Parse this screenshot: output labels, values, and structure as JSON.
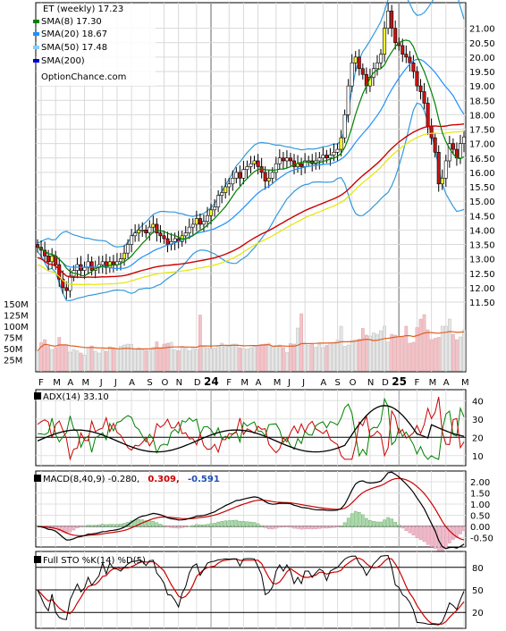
{
  "chart_data": [
    {
      "type": "candlestick",
      "title": "ET (weekly) 17.23",
      "legend": [
        {
          "label": "SMA(8) 17.30",
          "color": "#008000"
        },
        {
          "label": "SMA(20) 18.67",
          "color": "#1e90ff"
        },
        {
          "label": "SMA(50) 17.48",
          "color": "#e6e600"
        },
        {
          "label": "SMA(200)",
          "color": "#0000cc"
        }
      ],
      "watermark": "OptionChance.com",
      "legend_placement": "top-left",
      "ylim": [
        11.0,
        22.0
      ],
      "y_ticks": [
        "11.50",
        "12.00",
        "12.50",
        "13.00",
        "13.50",
        "14.00",
        "14.50",
        "15.00",
        "15.50",
        "16.00",
        "16.50",
        "17.00",
        "17.50",
        "18.00",
        "18.50",
        "19.00",
        "19.50",
        "20.00",
        "20.50",
        "21.00"
      ],
      "y_tick_values": [
        11.5,
        12.0,
        12.5,
        13.0,
        13.5,
        14.0,
        14.5,
        15.0,
        15.5,
        16.0,
        16.5,
        17.0,
        17.5,
        18.0,
        18.5,
        19.0,
        19.5,
        20.0,
        20.5,
        21.0
      ],
      "x_ticks": [
        {
          "label": "F",
          "w": 1
        },
        {
          "label": "M",
          "w": 5
        },
        {
          "label": "A",
          "w": 9
        },
        {
          "label": "M",
          "w": 13
        },
        {
          "label": "J",
          "w": 18
        },
        {
          "label": "J",
          "w": 22
        },
        {
          "label": "A",
          "w": 26
        },
        {
          "label": "S",
          "w": 31
        },
        {
          "label": "O",
          "w": 35
        },
        {
          "label": "N",
          "w": 39
        },
        {
          "label": "D",
          "w": 44
        },
        {
          "label": "24",
          "w": 48,
          "bold": true
        },
        {
          "label": "F",
          "w": 53
        },
        {
          "label": "M",
          "w": 57
        },
        {
          "label": "A",
          "w": 61
        },
        {
          "label": "M",
          "w": 66
        },
        {
          "label": "J",
          "w": 70
        },
        {
          "label": "J",
          "w": 74
        },
        {
          "label": "A",
          "w": 79
        },
        {
          "label": "S",
          "w": 83
        },
        {
          "label": "O",
          "w": 87
        },
        {
          "label": "N",
          "w": 92
        },
        {
          "label": "D",
          "w": 96
        },
        {
          "label": "25",
          "w": 100,
          "bold": true
        },
        {
          "label": "F",
          "w": 105
        },
        {
          "label": "M",
          "w": 109
        },
        {
          "label": "A",
          "w": 113
        },
        {
          "label": "M",
          "w": 118
        }
      ],
      "grid": true,
      "close": [
        13.4,
        13.3,
        13.1,
        12.9,
        13.1,
        12.8,
        12.3,
        12.0,
        11.9,
        12.4,
        12.6,
        12.8,
        12.6,
        12.7,
        12.9,
        12.6,
        12.7,
        12.8,
        12.9,
        12.7,
        12.9,
        12.8,
        12.9,
        13.0,
        13.2,
        13.5,
        13.8,
        13.9,
        14.0,
        14.0,
        13.9,
        14.1,
        14.2,
        13.9,
        13.8,
        13.7,
        13.5,
        13.6,
        13.7,
        13.6,
        13.8,
        13.9,
        14.1,
        14.2,
        14.4,
        14.2,
        14.3,
        14.5,
        14.7,
        14.8,
        15.2,
        15.3,
        15.5,
        15.6,
        15.8,
        16.0,
        15.8,
        16.1,
        16.2,
        16.3,
        16.4,
        16.2,
        16.0,
        15.7,
        15.8,
        16.0,
        16.3,
        16.5,
        16.4,
        16.5,
        16.4,
        16.2,
        16.3,
        16.2,
        16.4,
        16.4,
        16.3,
        16.4,
        16.5,
        16.6,
        16.5,
        16.6,
        16.7,
        16.8,
        17.2,
        18.0,
        19.0,
        19.8,
        20.0,
        19.6,
        19.4,
        19.0,
        19.3,
        19.6,
        19.8,
        20.1,
        21.0,
        21.6,
        21.0,
        20.5,
        20.4,
        20.1,
        20.0,
        19.8,
        19.5,
        19.0,
        18.8,
        18.4,
        17.6,
        17.2,
        16.7,
        15.6,
        15.8,
        16.4,
        17.0,
        16.8,
        16.5,
        17.0,
        17.23
      ],
      "volume_axis": {
        "ticks": [
          "25M",
          "50M",
          "75M",
          "100M",
          "125M",
          "150M"
        ],
        "values": [
          25,
          50,
          75,
          100,
          125,
          150
        ]
      },
      "volume": [
        45,
        63,
        70,
        55,
        48,
        52,
        75,
        57,
        58,
        42,
        48,
        45,
        40,
        35,
        52,
        56,
        44,
        40,
        47,
        44,
        54,
        52,
        49,
        55,
        58,
        60,
        59,
        49,
        52,
        48,
        46,
        45,
        53,
        65,
        50,
        60,
        62,
        64,
        47,
        45,
        55,
        51,
        45,
        50,
        48,
        125,
        55,
        52,
        50,
        51,
        57,
        62,
        56,
        55,
        60,
        60,
        52,
        50,
        49,
        52,
        55,
        56,
        59,
        60,
        62,
        54,
        57,
        58,
        52,
        41,
        61,
        60,
        96,
        128,
        62,
        57,
        60,
        53,
        60,
        52,
        57,
        62,
        64,
        69,
        100,
        55,
        58,
        68,
        70,
        71,
        95,
        80,
        78,
        85,
        82,
        90,
        100,
        65,
        82,
        80,
        78,
        75,
        100,
        62,
        64,
        97,
        116,
        126,
        92,
        70,
        73,
        75,
        100,
        100,
        116,
        82,
        70,
        76,
        92
      ]
    },
    {
      "type": "line",
      "title": "ADX(14) 33.10",
      "y_ticks": [
        "10",
        "20",
        "30",
        "40"
      ],
      "y_tick_values": [
        10,
        20,
        30,
        40
      ],
      "reference_lines": [
        20
      ]
    },
    {
      "type": "line+histogram",
      "title": "MACD(8,40,9) -0.280,",
      "values": [
        {
          "text": "0.309,",
          "color": "#cc0000"
        },
        {
          "text": "-0.591",
          "color": "#1f4fb8"
        }
      ],
      "y_ticks": [
        "-0.50",
        "0.00",
        "0.50",
        "1.00",
        "1.50",
        "2.00"
      ],
      "y_tick_values": [
        -0.5,
        0.0,
        0.5,
        1.0,
        1.5,
        2.0
      ],
      "reference_lines": [
        0
      ]
    },
    {
      "type": "line",
      "title": "Full STO %K(14) %D(5)",
      "y_ticks": [
        "20",
        "50",
        "80"
      ],
      "y_tick_values": [
        20,
        50,
        80
      ],
      "reference_lines": [
        20,
        50,
        80
      ]
    }
  ]
}
